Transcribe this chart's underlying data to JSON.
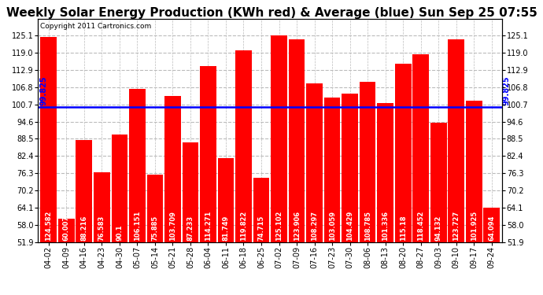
{
  "title": "Weekly Solar Energy Production (KWh red) & Average (blue) Sun Sep 25 07:55",
  "copyright": "Copyright 2011 Cartronics.com",
  "average": 99.825,
  "bar_color": "#FF0000",
  "avg_line_color": "#0000FF",
  "background_color": "#FFFFFF",
  "plot_bg_color": "#FFFFFF",
  "grid_color": "#BBBBBB",
  "categories": [
    "04-02",
    "04-09",
    "04-16",
    "04-23",
    "04-30",
    "05-07",
    "05-14",
    "05-21",
    "05-28",
    "06-04",
    "06-11",
    "06-18",
    "06-25",
    "07-02",
    "07-09",
    "07-16",
    "07-23",
    "07-30",
    "08-06",
    "08-13",
    "08-20",
    "08-27",
    "09-03",
    "09-10",
    "09-17",
    "09-24"
  ],
  "values": [
    124.582,
    60.007,
    88.216,
    76.583,
    90.1,
    106.151,
    75.885,
    103.709,
    87.233,
    114.271,
    81.749,
    119.822,
    74.715,
    125.102,
    123.906,
    108.297,
    103.059,
    104.429,
    108.785,
    101.336,
    115.18,
    118.452,
    94.132,
    123.727,
    101.925,
    64.094
  ],
  "ylim_min": 51.9,
  "ylim_max": 131.0,
  "yticks": [
    51.9,
    58.0,
    64.1,
    70.2,
    76.3,
    82.4,
    88.5,
    94.6,
    100.7,
    106.8,
    112.9,
    119.0,
    125.1
  ],
  "title_fontsize": 11,
  "tick_fontsize": 7,
  "label_fontsize": 6,
  "avg_label_fontsize": 7,
  "copyright_fontsize": 6.5
}
